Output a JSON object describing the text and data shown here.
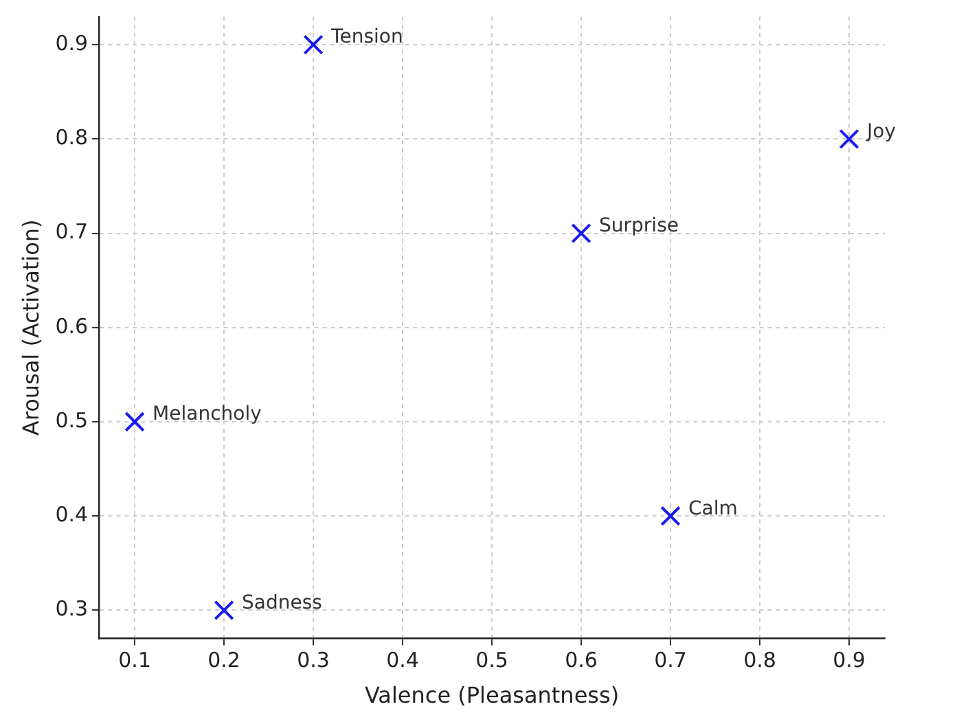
{
  "chart_data": {
    "type": "scatter",
    "xlabel": "Valence (Pleasantness)",
    "ylabel": "Arousal (Activation)",
    "x": [
      0.3,
      0.9,
      0.6,
      0.1,
      0.7,
      0.2
    ],
    "values": [
      0.9,
      0.8,
      0.7,
      0.5,
      0.4,
      0.3
    ],
    "color": "#1a1aee",
    "marker": "cross",
    "grid": true,
    "legend": false,
    "xlim": [
      0.06,
      0.94
    ],
    "ylim": [
      0.27,
      0.93
    ],
    "xticks": [
      0.1,
      0.2,
      0.3,
      0.4,
      0.5,
      0.6,
      0.7,
      0.8,
      0.9
    ],
    "yticks": [
      0.3,
      0.4,
      0.5,
      0.6,
      0.7,
      0.8,
      0.9
    ],
    "annotations": [
      {
        "text": "Tension",
        "x": 0.3,
        "y": 0.9
      },
      {
        "text": "Joy",
        "x": 0.9,
        "y": 0.8
      },
      {
        "text": "Surprise",
        "x": 0.6,
        "y": 0.7
      },
      {
        "text": "Melancholy",
        "x": 0.1,
        "y": 0.5
      },
      {
        "text": "Calm",
        "x": 0.7,
        "y": 0.4
      },
      {
        "text": "Sadness",
        "x": 0.2,
        "y": 0.3
      }
    ]
  }
}
